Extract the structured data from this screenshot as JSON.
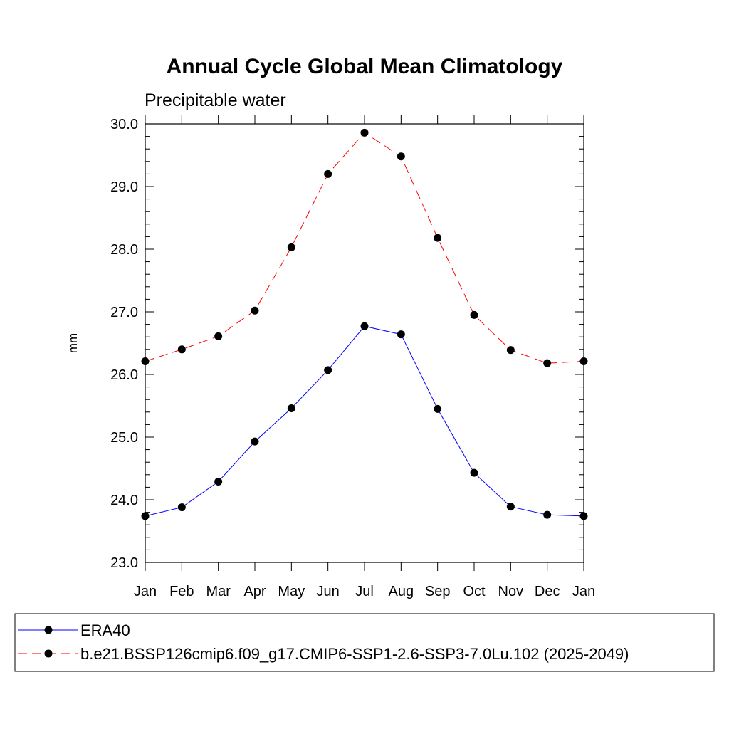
{
  "chart_data": {
    "type": "line",
    "title": "Annual Cycle Global Mean Climatology",
    "subtitle": "Precipitable water",
    "xlabel": "",
    "ylabel": "mm",
    "categories": [
      "Jan",
      "Feb",
      "Mar",
      "Apr",
      "May",
      "Jun",
      "Jul",
      "Aug",
      "Sep",
      "Oct",
      "Nov",
      "Dec",
      "Jan"
    ],
    "ylim": [
      23.0,
      30.0
    ],
    "yticks": [
      "23.0",
      "24.0",
      "25.0",
      "26.0",
      "27.0",
      "28.0",
      "29.0",
      "30.0"
    ],
    "grid": false,
    "legend_position": "bottom",
    "series": [
      {
        "name": "ERA40",
        "color": "#0000ff",
        "line_style": "solid",
        "marker": "circle",
        "values": [
          23.74,
          23.88,
          24.29,
          24.93,
          25.46,
          26.07,
          26.77,
          26.64,
          25.45,
          24.43,
          23.89,
          23.76,
          23.74
        ]
      },
      {
        "name": "b.e21.BSSP126cmip6.f09_g17.CMIP6-SSP1-2.6-SSP3-7.0Lu.102 (2025-2049)",
        "color": "#ff0000",
        "line_style": "dashed",
        "marker": "circle",
        "values": [
          26.21,
          26.4,
          26.61,
          27.02,
          28.03,
          29.2,
          29.86,
          29.48,
          28.18,
          26.95,
          26.39,
          26.18,
          26.21
        ]
      }
    ]
  }
}
